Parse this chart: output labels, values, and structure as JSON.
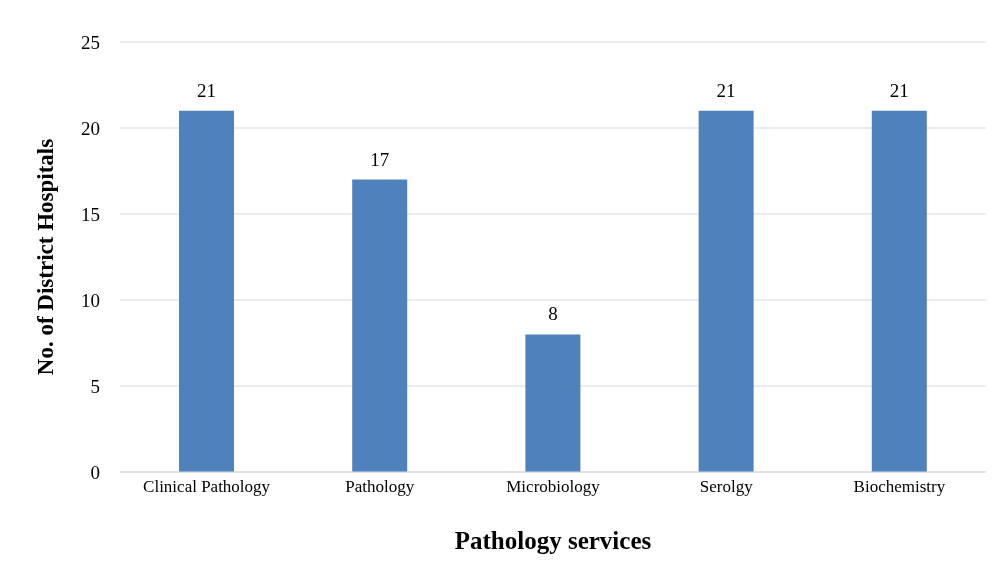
{
  "chart_data": {
    "type": "bar",
    "xlabel": "Pathology services",
    "ylabel": "No. of District Hospitals",
    "categories": [
      "Clinical Pathology",
      "Pathology",
      "Microbiology",
      "Serolgy",
      "Biochemistry"
    ],
    "values": [
      21,
      17,
      8,
      21,
      21
    ],
    "color": "#4f81bd",
    "ylim": [
      0,
      25
    ],
    "yticks": [
      0,
      5,
      10,
      15,
      20,
      25
    ],
    "grid": "y",
    "data_labels": true
  }
}
